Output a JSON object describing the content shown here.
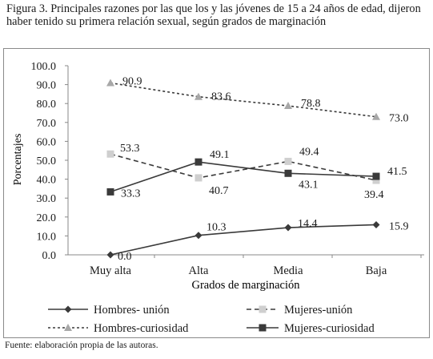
{
  "caption": "Figura 3. Principales razones por las que los y las jóvenes de 15 a 24 años de edad, dijeron haber tenido su primera relación sexual, según grados de marginación",
  "source": "Fuente: elaboración propia de las autoras.",
  "colors": {
    "dark": "#3a3a3a",
    "light_gray": "#b5b5b5",
    "mid_gray": "#999999",
    "text": "#1a1a1a"
  },
  "chart_data": {
    "type": "line",
    "title": "",
    "xlabel": "Grados de marginación",
    "ylabel": "Porcentajes",
    "ylim": [
      0,
      100
    ],
    "yticks": [
      "0.0",
      "10.0",
      "20.0",
      "30.0",
      "40.0",
      "50.0",
      "60.0",
      "70.0",
      "80.0",
      "90.0",
      "100.0"
    ],
    "categories": [
      "Muy alta",
      "Alta",
      "Media",
      "Baja"
    ],
    "grid": false,
    "legend_position": "bottom",
    "series": [
      {
        "name": "Hombres- unión",
        "values": [
          0.0,
          10.3,
          14.4,
          15.9
        ],
        "labels": [
          "0.0",
          "10.3",
          "14.4",
          "15.9"
        ],
        "color": "#3a3a3a",
        "dash": "solid",
        "marker": "diamond"
      },
      {
        "name": "Mujeres-unión",
        "values": [
          53.3,
          40.7,
          49.4,
          39.4
        ],
        "labels": [
          "53.3",
          "40.7",
          "49.4",
          "39.4"
        ],
        "color": "#3a3a3a",
        "dash": "dashed",
        "marker": "square-light"
      },
      {
        "name": "Hombres-curiosidad",
        "values": [
          90.9,
          83.6,
          78.8,
          73.0
        ],
        "labels": [
          "90.9",
          "83.6",
          "78.8",
          "73.0"
        ],
        "color": "#3a3a3a",
        "dash": "dotted",
        "marker": "triangle"
      },
      {
        "name": "Mujeres-curiosidad",
        "values": [
          33.3,
          49.1,
          43.1,
          41.5
        ],
        "labels": [
          "33.3",
          "49.1",
          "43.1",
          "41.5"
        ],
        "color": "#3a3a3a",
        "dash": "solid",
        "marker": "square-dark"
      }
    ]
  }
}
